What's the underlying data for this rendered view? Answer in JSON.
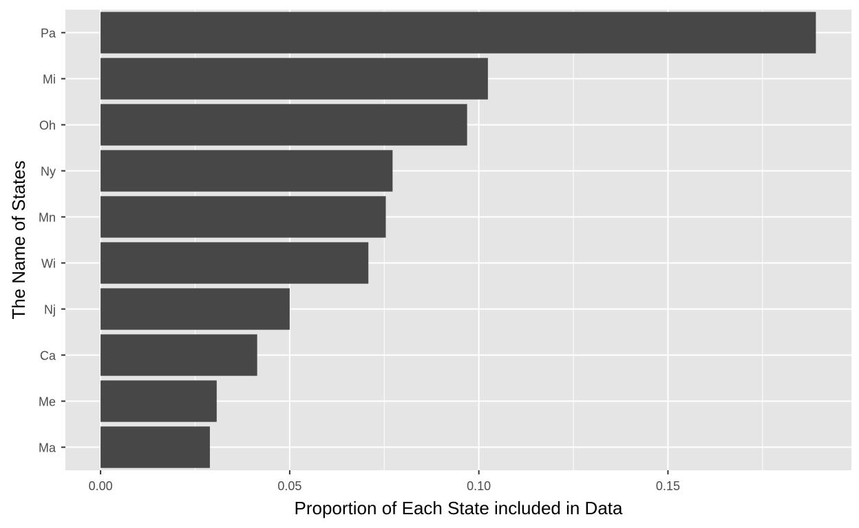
{
  "chart_data": {
    "type": "bar",
    "orientation": "horizontal",
    "title": "",
    "xlabel": "Proportion of Each State included in Data",
    "ylabel": "The Name of States",
    "categories": [
      "Pa",
      "Mi",
      "Oh",
      "Ny",
      "Mn",
      "Wi",
      "Nj",
      "Ca",
      "Me",
      "Ma"
    ],
    "values": [
      0.1891,
      0.1024,
      0.0969,
      0.0772,
      0.0754,
      0.0708,
      0.05,
      0.0414,
      0.0307,
      0.0289
    ],
    "xticks": [
      "0.00",
      "0.05",
      "0.10",
      "0.15"
    ],
    "xtick_values": [
      0,
      0.05,
      0.1,
      0.15
    ],
    "xlim": [
      -0.0093,
      0.1985
    ],
    "grid": true,
    "legend": "none",
    "colors": {
      "bar": "#474747",
      "panel": "#e5e5e5",
      "grid": "#ffffff",
      "tick": "#4d4d4d"
    }
  }
}
